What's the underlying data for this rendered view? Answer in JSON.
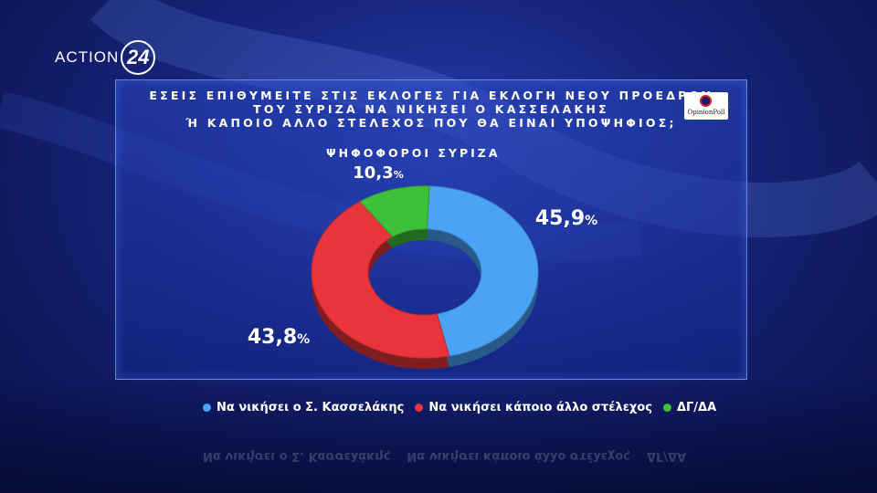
{
  "brand": {
    "name": "ACTION",
    "number": "24"
  },
  "pollster": {
    "label": "OpinionPoll"
  },
  "question_lines": [
    "ΕΣΕΙΣ ΕΠΙΘΥΜΕΙΤΕ ΣΤΙΣ ΕΚΛΟΓΕΣ ΓΙΑ ΕΚΛΟΓΗ ΝΕΟΥ ΠΡΟΕΔΡΟΥ",
    "ΤΟΥ ΣΥΡΙΖΑ ΝΑ ΝΙΚΗΣΕΙ Ο ΚΑΣΣΕΛΑΚΗΣ",
    "Ή ΚΑΠΟΙΟ ΑΛΛΟ ΣΤΕΛΕΧΟΣ ΠΟΥ ΘΑ ΕΙΝΑΙ ΥΠΟΨΗΦΙΟΣ;"
  ],
  "chart_data": {
    "type": "pie",
    "subtitle": "ΨΗΦΟΦΟΡΟΙ ΣΥΡΙΖΑ",
    "categories": [
      "Να νικήσει ο Σ. Κασσελάκης",
      "Να νικήσει κάποιο άλλο στέλεχος",
      "ΔΓ/ΔΑ"
    ],
    "values": [
      45.9,
      43.8,
      10.3
    ],
    "value_labels": [
      "45,9",
      "43,8",
      "10,3"
    ],
    "unit": "%",
    "colors": [
      "#4aa3f5",
      "#e8343a",
      "#3ec03a"
    ],
    "donut": true,
    "legend_position": "bottom"
  }
}
